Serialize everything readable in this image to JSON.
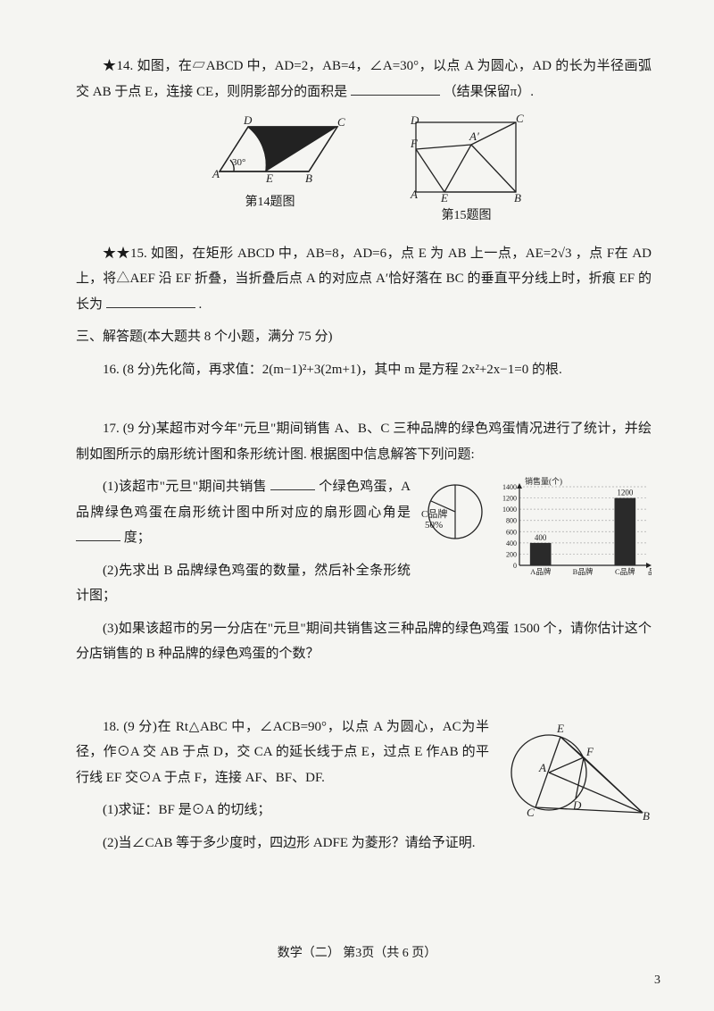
{
  "q14": {
    "prefix": "★14.",
    "text_a": "如图，在▱ABCD 中，AD=2，AB=4，∠A=30°，以点 A 为圆心，AD 的长为半径画弧交 AB 于点 E，连接 CE，则阴影部分的面积是",
    "text_b": "（结果保留π）.",
    "caption": "第14题图"
  },
  "q15": {
    "prefix": "★★15.",
    "text_a": "如图，在矩形 ABCD 中，AB=8，AD=6，点 E 为 AB 上一点，AE=2√3 ，点 F在 AD 上，将△AEF 沿 EF 折叠，当折叠后点 A 的对应点 A′恰好落在 BC 的垂直平分线上时，折痕 EF 的长为",
    "text_b": ".",
    "caption": "第15题图"
  },
  "section3": "三、解答题(本大题共 8 个小题，满分 75 分)",
  "q16": {
    "prefix": "16.",
    "text": "(8 分)先化简，再求值：2(m−1)²+3(2m+1)，其中 m 是方程 2x²+2x−1=0 的根."
  },
  "q17": {
    "prefix": "17.",
    "intro": "(9 分)某超市对今年\"元旦\"期间销售 A、B、C 三种品牌的绿色鸡蛋情况进行了统计，并绘制如图所示的扇形统计图和条形统计图. 根据图中信息解答下列问题:",
    "p1a": "(1)该超市\"元旦\"期间共销售",
    "p1b": "个绿色鸡蛋，A 品牌绿色鸡蛋在扇形统计图中所对应的扇形圆心角是",
    "p1c": "度；",
    "p2": "(2)先求出 B 品牌绿色鸡蛋的数量，然后补全条形统计图；",
    "p3": "(3)如果该超市的另一分店在\"元旦\"期间共销售这三种品牌的绿色鸡蛋 1500 个，请你估计这个分店销售的 B 种品牌的绿色鸡蛋的个数？",
    "pie_label": "C品牌\n50%",
    "bar": {
      "ytitle": "销售量(个)",
      "xtitle": "品牌",
      "categories": [
        "A品牌",
        "B品牌",
        "C品牌"
      ],
      "values": [
        400,
        0,
        1200
      ],
      "labels": [
        "400",
        "",
        "1200"
      ],
      "ymax": 1400,
      "ytick": 200,
      "bar_color": "#2a2a2a",
      "grid_color": "#aaaaaa"
    }
  },
  "q18": {
    "prefix": "18.",
    "intro": "(9 分)在 Rt△ABC 中，∠ACB=90°，以点 A 为圆心，AC为半径，作⊙A 交 AB 于点 D，交 CA 的延长线于点 E，过点 E 作AB 的平行线 EF 交⊙A 于点 F，连接 AF、BF、DF.",
    "p1": "(1)求证：BF 是⊙A 的切线；",
    "p2": "(2)当∠CAB 等于多少度时，四边形 ADFE 为菱形？请给予证明."
  },
  "footer": "数学（二）  第3页（共 6 页）",
  "page_number": "3"
}
